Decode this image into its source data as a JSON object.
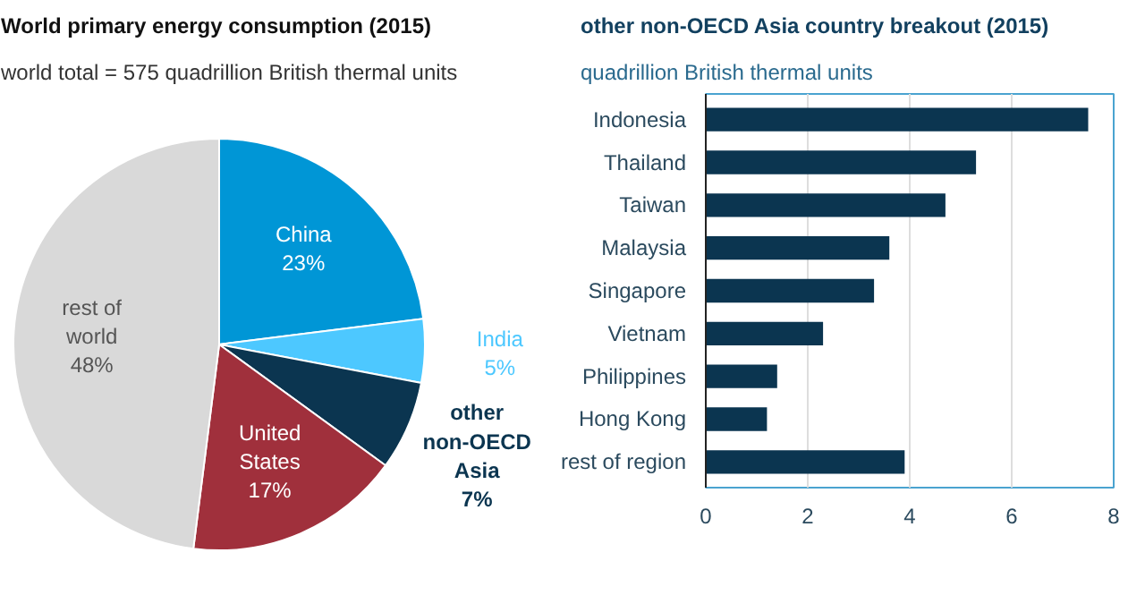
{
  "chart_data": [
    {
      "type": "pie",
      "title": "World primary energy consumption (2015)",
      "subtitle": "world total = 575 quadrillion British thermal units",
      "categories": [
        "China",
        "India",
        "other non-OECD Asia",
        "United States",
        "rest of world"
      ],
      "values": [
        23,
        5,
        7,
        17,
        48
      ],
      "colors": [
        "#0096d6",
        "#4dc8ff",
        "#0b3550",
        "#a0303c",
        "#d9d9d9"
      ],
      "value_labels": [
        "23%",
        "5%",
        "7%",
        "17%",
        "48%"
      ]
    },
    {
      "type": "bar",
      "orientation": "horizontal",
      "title": "other non-OECD Asia country breakout (2015)",
      "subtitle": "quadrillion British thermal units",
      "categories": [
        "Indonesia",
        "Thailand",
        "Taiwan",
        "Malaysia",
        "Singapore",
        "Vietnam",
        "Philippines",
        "Hong Kong",
        "rest of region"
      ],
      "values": [
        7.5,
        5.3,
        4.7,
        3.6,
        3.3,
        2.3,
        1.4,
        1.2,
        3.9
      ],
      "color": "#0b3550",
      "xlim": [
        0,
        8
      ],
      "xticks": [
        0,
        2,
        4,
        6,
        8
      ],
      "grid": "x"
    }
  ]
}
